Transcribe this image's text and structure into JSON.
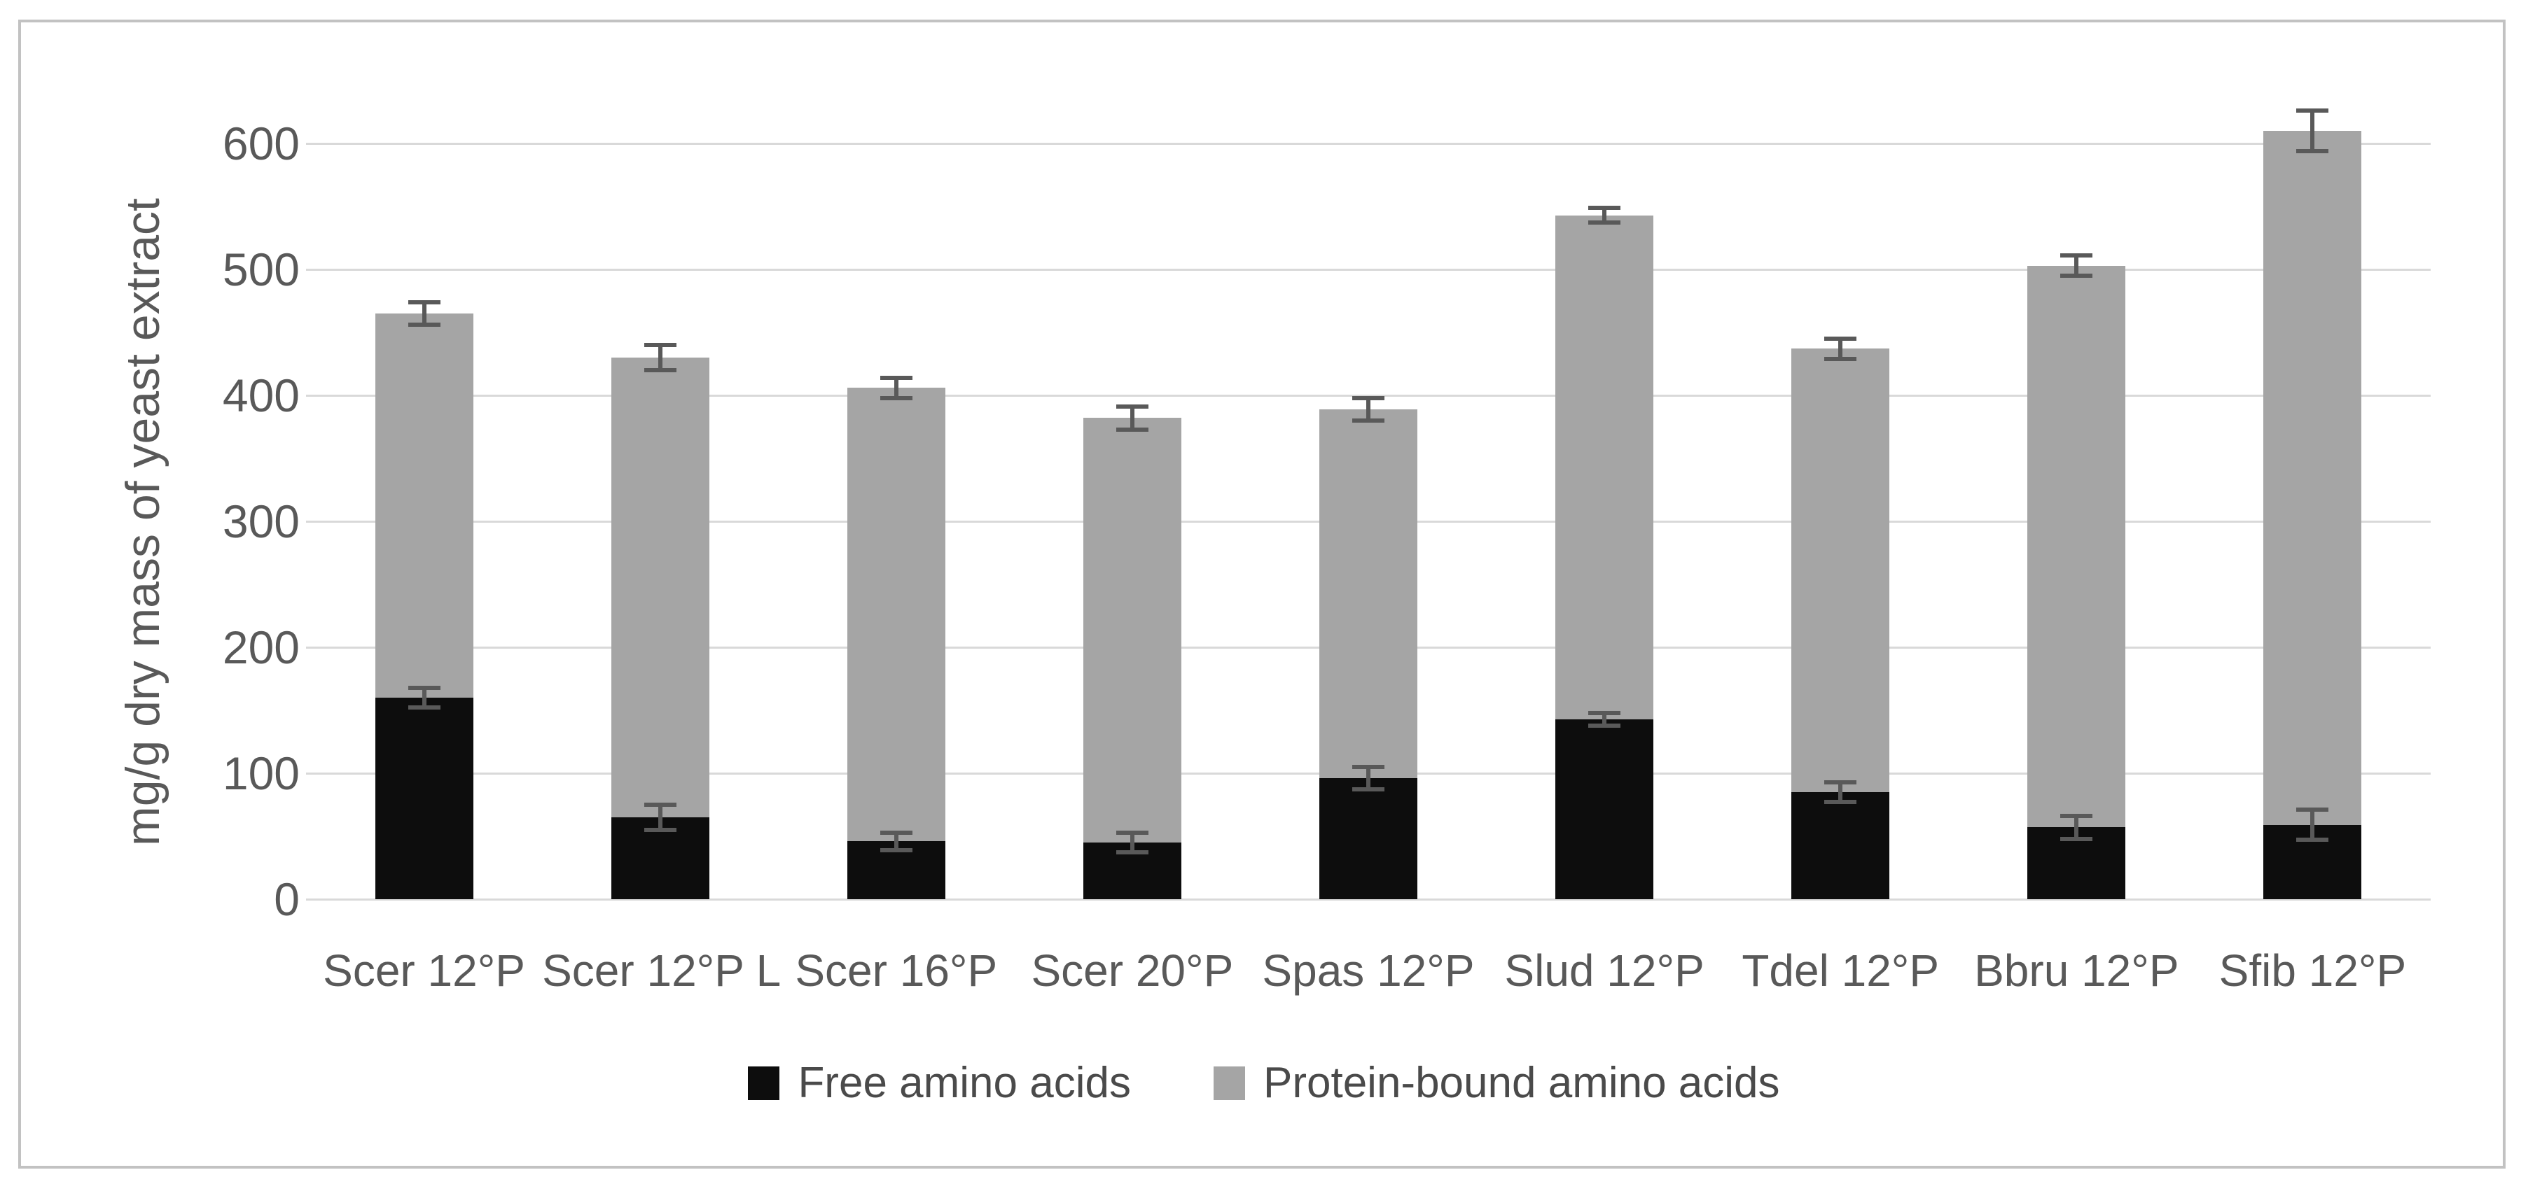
{
  "figure": {
    "background": "#ffffff",
    "border_color": "#c2c2c2"
  },
  "chart_data": {
    "type": "bar",
    "stacked": true,
    "title": "",
    "xlabel": "",
    "ylabel": "mg/g dry mass of yeast extract",
    "categories": [
      "Scer 12°P",
      "Scer 12°P L",
      "Scer 16°P",
      "Scer 20°P",
      "Spas 12°P",
      "Slud 12°P",
      "Tdel 12°P",
      "Bbru 12°P",
      "Sfib 12°P"
    ],
    "series": [
      {
        "name": "Free amino acids",
        "color": "#0d0d0d",
        "values": [
          160,
          65,
          46,
          45,
          96,
          143,
          85,
          57,
          59
        ]
      },
      {
        "name": "Protein-bound amino acids",
        "color": "#a5a5a5",
        "values": [
          305,
          365,
          360,
          337,
          293,
          400,
          352,
          446,
          551
        ]
      }
    ],
    "stack_totals": [
      465,
      430,
      406,
      382,
      389,
      543,
      437,
      503,
      610
    ],
    "error_bars": {
      "color": "#595959",
      "free_segment_top": [
        8,
        10,
        7,
        8,
        9,
        5,
        8,
        9,
        12
      ],
      "stack_top": [
        9,
        10,
        8,
        9,
        9,
        6,
        8,
        8,
        16
      ]
    },
    "y_axis": {
      "min": 0,
      "max": 650,
      "tick_step": 100,
      "ticks": [
        0,
        100,
        200,
        300,
        400,
        500,
        600
      ]
    },
    "grid": {
      "show_horizontal": true,
      "color": "#d9d9d9"
    },
    "legend": {
      "position": "bottom",
      "entries": [
        "Free amino acids",
        "Protein-bound amino acids"
      ]
    },
    "text_color": "#595959"
  }
}
